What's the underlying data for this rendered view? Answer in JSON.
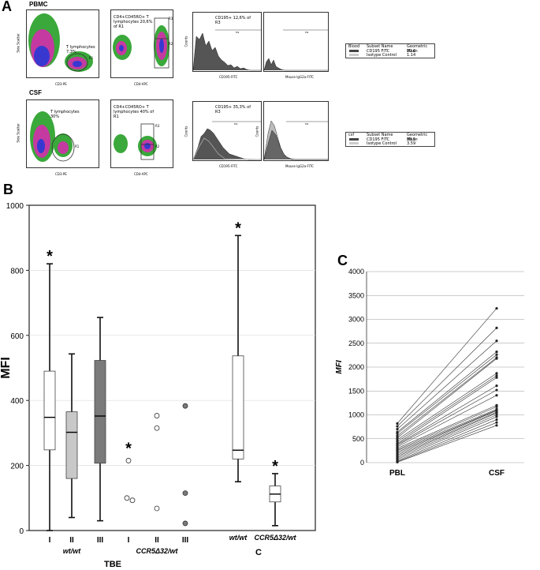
{
  "figure": {
    "panel_a_label": "A",
    "panel_b_label": "B",
    "panel_c_label": "C"
  },
  "panel_a": {
    "rows": [
      {
        "sample": "PBMC",
        "scatter1": {
          "gate_text": "T lymphocytes 7,3%",
          "gate": "R1",
          "xlabel": "CD3-PE",
          "ylabel": "Side Scatter"
        },
        "scatter2": {
          "gate_text": "CD4+CD45RO+ T lymphocytes 20,6% of R1",
          "gates": [
            "R2",
            "R3"
          ],
          "xlabel": "CD4-APC",
          "ylabel": "CD45RO-ECD"
        },
        "hist1": {
          "title": "CD195+ 12,6% of R3",
          "xlabel": "CD195-FITC",
          "ylabel": "Counts",
          "marker": "M1"
        },
        "hist2": {
          "xlabel": "Mouse IgG2a-FITC",
          "marker": "M1"
        },
        "table": {
          "source": "Blood",
          "headers": [
            "Subset Name",
            "Geometric Mean"
          ],
          "rows": [
            [
              "CD195 FITC",
              "20.6"
            ],
            [
              "Isotype Control",
              "1.14"
            ]
          ]
        }
      },
      {
        "sample": "CSF",
        "scatter1": {
          "gate_text": "T lymphocytes 30%",
          "gate": "R1",
          "xlabel": "CD3-PE",
          "ylabel": "Side Scatter"
        },
        "scatter2": {
          "gate_text": "CD4+CD45RO+ T lymphocytes 40% of R1",
          "gates": [
            "R2",
            "R3"
          ],
          "xlabel": "CD4-APC",
          "ylabel": "CD45RO-ECD"
        },
        "hist1": {
          "title": "CD195+ 35,3% of R3",
          "xlabel": "CD195-FITC",
          "ylabel": "Counts",
          "marker": "M1"
        },
        "hist2": {
          "xlabel": "Mouse IgG2a-FITC",
          "ylabel": "Counts",
          "marker": "M1"
        },
        "table": {
          "source": "csf",
          "headers": [
            "Subset Name",
            "Geometric Mean"
          ],
          "rows": [
            [
              "CD195 FITC",
              "38.5"
            ],
            [
              "Isotype Control",
              "3.59"
            ]
          ]
        }
      }
    ]
  },
  "chart_data": [
    {
      "type": "box",
      "panel": "B",
      "ylabel": "MFI",
      "ylim": [
        0,
        1000
      ],
      "yticks": [
        0,
        200,
        400,
        600,
        800,
        1000
      ],
      "grid": true,
      "categories": [
        "I",
        "II",
        "III",
        "I",
        "II",
        "III",
        "wt/wt",
        "CCR5Δ32/wt"
      ],
      "group_labels": [
        {
          "text": "wt/wt",
          "under": [
            0,
            1,
            2
          ]
        },
        {
          "text": "CCR5Δ32/wt",
          "under": [
            3,
            4,
            5
          ]
        },
        {
          "text": "TBE",
          "under": [
            0,
            5
          ]
        },
        {
          "text": "C",
          "under": [
            6,
            7
          ]
        }
      ],
      "boxes": [
        {
          "index": 0,
          "min": 0,
          "q1": 248,
          "median": 348,
          "q3": 490,
          "max": 820,
          "fill": "white",
          "star": true
        },
        {
          "index": 1,
          "min": 40,
          "q1": 160,
          "median": 302,
          "q3": 365,
          "max": 543,
          "fill": "lightgray",
          "star": false
        },
        {
          "index": 2,
          "min": 30,
          "q1": 207,
          "median": 352,
          "q3": 523,
          "max": 655,
          "fill": "gray",
          "star": false
        },
        {
          "index": 6,
          "min": 150,
          "q1": 220,
          "median": 247,
          "q3": 537,
          "max": 907,
          "fill": "white",
          "star": true
        },
        {
          "index": 7,
          "min": 15,
          "q1": 88,
          "median": 112,
          "q3": 137,
          "max": 175,
          "fill": "white",
          "star": true
        }
      ],
      "points": [
        {
          "index": 3,
          "values": [
            215,
            100,
            93
          ],
          "fill": "white",
          "star": true
        },
        {
          "index": 4,
          "values": [
            353,
            315,
            68
          ],
          "fill": "white",
          "star": false
        },
        {
          "index": 5,
          "values": [
            383,
            115,
            22
          ],
          "fill": "gray",
          "star": false
        }
      ],
      "star_symbol": "*"
    },
    {
      "type": "line",
      "panel": "C",
      "ylabel": "MFI",
      "categories": [
        "PBL",
        "CSF"
      ],
      "ylim": [
        0,
        4000
      ],
      "yticks": [
        0,
        500,
        1000,
        1500,
        2000,
        2500,
        3000,
        3500,
        4000
      ],
      "grid": true,
      "series": [
        [
          820,
          3230
        ],
        [
          760,
          2820
        ],
        [
          700,
          2550
        ],
        [
          640,
          2320
        ],
        [
          610,
          2260
        ],
        [
          560,
          2200
        ],
        [
          520,
          2180
        ],
        [
          480,
          1870
        ],
        [
          440,
          1820
        ],
        [
          400,
          1780
        ],
        [
          380,
          1610
        ],
        [
          360,
          1520
        ],
        [
          330,
          1410
        ],
        [
          300,
          1200
        ],
        [
          270,
          1170
        ],
        [
          250,
          1120
        ],
        [
          220,
          1100
        ],
        [
          190,
          1090
        ],
        [
          160,
          1060
        ],
        [
          130,
          1040
        ],
        [
          100,
          1000
        ],
        [
          70,
          960
        ],
        [
          40,
          900
        ],
        [
          20,
          840
        ],
        [
          10,
          780
        ]
      ]
    }
  ]
}
